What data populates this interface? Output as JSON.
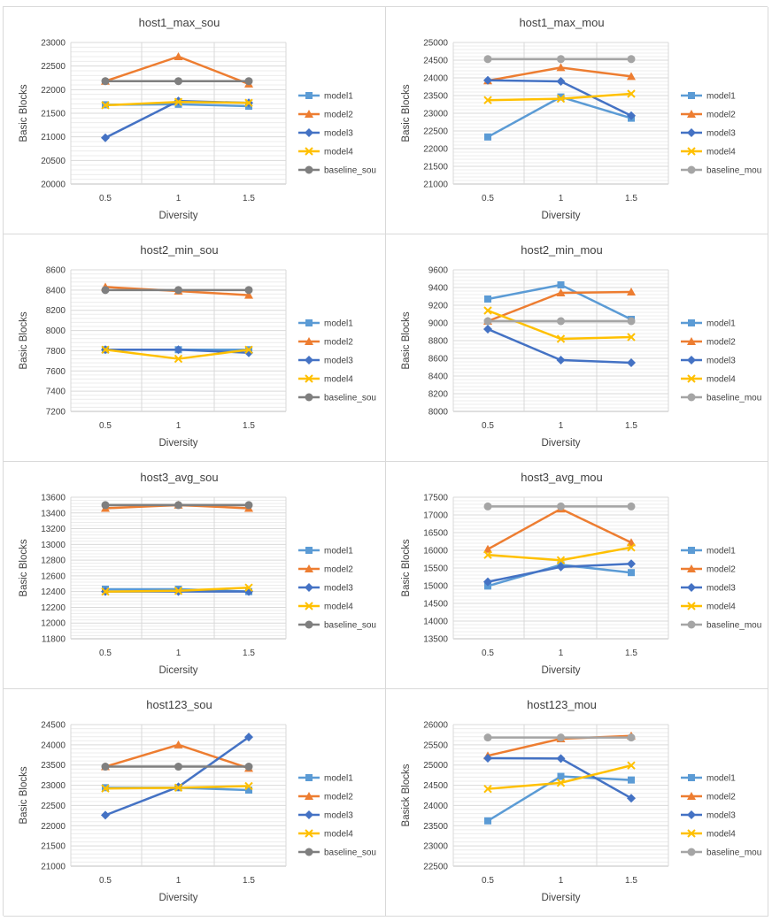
{
  "colors": {
    "model1": "#5b9bd5",
    "model2": "#ed7d31",
    "model3": "#4472c4",
    "model4": "#ffc000",
    "baseline": "#7f7f7f",
    "baseline_mou": "#a5a5a5",
    "grid_minor": "#ececec",
    "grid_vertical": "#d9d9d9",
    "axis": "#bfbfbf",
    "text": "#404040"
  },
  "chart_data": [
    {
      "type": "line",
      "title": "host1_max_sou",
      "xlabel": "Diversity",
      "ylabel": "Basic Blocks",
      "x": [
        "0.5",
        "1",
        "1.5"
      ],
      "ylim": [
        20000,
        23000
      ],
      "yticks": [
        "20000",
        "20500",
        "21000",
        "21500",
        "22000",
        "22500",
        "23000"
      ],
      "legend_position": "right",
      "series": [
        {
          "name": "model1",
          "values": [
            21680,
            21690,
            21650
          ],
          "marker": "square",
          "color": "#5b9bd5"
        },
        {
          "name": "model2",
          "values": [
            22180,
            22700,
            22120
          ],
          "marker": "triangle",
          "color": "#ed7d31"
        },
        {
          "name": "model3",
          "values": [
            20980,
            21760,
            21720
          ],
          "marker": "diamond",
          "color": "#4472c4"
        },
        {
          "name": "model4",
          "values": [
            21670,
            21740,
            21720
          ],
          "marker": "x",
          "color": "#ffc000"
        },
        {
          "name": "baseline_sou",
          "values": [
            22180,
            22180,
            22180
          ],
          "marker": "circle",
          "color": "#7f7f7f"
        }
      ]
    },
    {
      "type": "line",
      "title": "host1_max_mou",
      "xlabel": "Diversity",
      "ylabel": "Basic Blocks",
      "x": [
        "0.5",
        "1",
        "1.5"
      ],
      "ylim": [
        21000,
        25000
      ],
      "yticks": [
        "21000",
        "21500",
        "22000",
        "22500",
        "23000",
        "23500",
        "24000",
        "24500",
        "25000"
      ],
      "legend_position": "right",
      "series": [
        {
          "name": "model1",
          "values": [
            22330,
            23460,
            22860
          ],
          "marker": "square",
          "color": "#5b9bd5"
        },
        {
          "name": "model2",
          "values": [
            23920,
            24290,
            24040
          ],
          "marker": "triangle",
          "color": "#ed7d31"
        },
        {
          "name": "model3",
          "values": [
            23930,
            23900,
            22930
          ],
          "marker": "diamond",
          "color": "#4472c4"
        },
        {
          "name": "model4",
          "values": [
            23370,
            23410,
            23550
          ],
          "marker": "x",
          "color": "#ffc000"
        },
        {
          "name": "baseline_mou",
          "values": [
            24530,
            24530,
            24530
          ],
          "marker": "circle",
          "color": "#a5a5a5"
        }
      ]
    },
    {
      "type": "line",
      "title": "host2_min_sou",
      "xlabel": "Diversity",
      "ylabel": "Basic Blocks",
      "x": [
        "0.5",
        "1",
        "1.5"
      ],
      "ylim": [
        7200,
        8600
      ],
      "yticks": [
        "7200",
        "7400",
        "7600",
        "7800",
        "8000",
        "8200",
        "8400",
        "8600"
      ],
      "legend_position": "right",
      "series": [
        {
          "name": "model1",
          "values": [
            7810,
            7810,
            7810
          ],
          "marker": "square",
          "color": "#5b9bd5"
        },
        {
          "name": "model2",
          "values": [
            8430,
            8390,
            8350
          ],
          "marker": "triangle",
          "color": "#ed7d31"
        },
        {
          "name": "model3",
          "values": [
            7810,
            7810,
            7780
          ],
          "marker": "diamond",
          "color": "#4472c4"
        },
        {
          "name": "model4",
          "values": [
            7810,
            7720,
            7810
          ],
          "marker": "x",
          "color": "#ffc000"
        },
        {
          "name": "baseline_sou",
          "values": [
            8400,
            8400,
            8400
          ],
          "marker": "circle",
          "color": "#7f7f7f"
        }
      ]
    },
    {
      "type": "line",
      "title": "host2_min_mou",
      "xlabel": "Diversity",
      "ylabel": "Basic Blocks",
      "x": [
        "0.5",
        "1",
        "1.5"
      ],
      "ylim": [
        8000,
        9600
      ],
      "yticks": [
        "8000",
        "8200",
        "8400",
        "8600",
        "8800",
        "9000",
        "9200",
        "9400",
        "9600"
      ],
      "legend_position": "right",
      "series": [
        {
          "name": "model1",
          "values": [
            9270,
            9430,
            9040
          ],
          "marker": "square",
          "color": "#5b9bd5"
        },
        {
          "name": "model2",
          "values": [
            9020,
            9340,
            9350
          ],
          "marker": "triangle",
          "color": "#ed7d31"
        },
        {
          "name": "model3",
          "values": [
            8930,
            8580,
            8550
          ],
          "marker": "diamond",
          "color": "#4472c4"
        },
        {
          "name": "model4",
          "values": [
            9140,
            8820,
            8840
          ],
          "marker": "x",
          "color": "#ffc000"
        },
        {
          "name": "baseline_mou",
          "values": [
            9020,
            9020,
            9020
          ],
          "marker": "circle",
          "color": "#a5a5a5"
        }
      ]
    },
    {
      "type": "line",
      "title": "host3_avg_sou",
      "xlabel": "Dicersity",
      "ylabel": "Basic Blocks",
      "x": [
        "0.5",
        "1",
        "1.5"
      ],
      "ylim": [
        11800,
        13600
      ],
      "yticks": [
        "11800",
        "12000",
        "12200",
        "12400",
        "12600",
        "12800",
        "13000",
        "13200",
        "13400",
        "13600"
      ],
      "legend_position": "right",
      "series": [
        {
          "name": "model1",
          "values": [
            12430,
            12430,
            12400
          ],
          "marker": "square",
          "color": "#5b9bd5"
        },
        {
          "name": "model2",
          "values": [
            13460,
            13500,
            13460
          ],
          "marker": "triangle",
          "color": "#ed7d31"
        },
        {
          "name": "model3",
          "values": [
            12400,
            12400,
            12400
          ],
          "marker": "diamond",
          "color": "#4472c4"
        },
        {
          "name": "model4",
          "values": [
            12400,
            12410,
            12450
          ],
          "marker": "x",
          "color": "#ffc000"
        },
        {
          "name": "baseline_sou",
          "values": [
            13500,
            13500,
            13500
          ],
          "marker": "circle",
          "color": "#7f7f7f"
        }
      ]
    },
    {
      "type": "line",
      "title": "host3_avg_mou",
      "xlabel": "Diversity",
      "ylabel": "Basic Blocks",
      "x": [
        "0.5",
        "1",
        "1.5"
      ],
      "ylim": [
        13500,
        17500
      ],
      "yticks": [
        "13500",
        "14000",
        "14500",
        "15000",
        "15500",
        "16000",
        "16500",
        "17000",
        "17500"
      ],
      "legend_position": "right",
      "series": [
        {
          "name": "model1",
          "values": [
            14990,
            15590,
            15370
          ],
          "marker": "square",
          "color": "#5b9bd5"
        },
        {
          "name": "model2",
          "values": [
            16030,
            17170,
            16220
          ],
          "marker": "triangle",
          "color": "#ed7d31"
        },
        {
          "name": "model3",
          "values": [
            15110,
            15530,
            15620
          ],
          "marker": "diamond",
          "color": "#4472c4"
        },
        {
          "name": "model4",
          "values": [
            15870,
            15720,
            16080
          ],
          "marker": "x",
          "color": "#ffc000"
        },
        {
          "name": "baseline_mou",
          "values": [
            17240,
            17240,
            17240
          ],
          "marker": "circle",
          "color": "#a5a5a5"
        }
      ]
    },
    {
      "type": "line",
      "title": "host123_sou",
      "xlabel": "Diversity",
      "ylabel": "Basic Blocks",
      "x": [
        "0.5",
        "1",
        "1.5"
      ],
      "ylim": [
        21000,
        24500
      ],
      "yticks": [
        "21000",
        "21500",
        "22000",
        "22500",
        "23000",
        "23500",
        "24000",
        "24500"
      ],
      "legend_position": "right",
      "series": [
        {
          "name": "model1",
          "values": [
            22940,
            22940,
            22880
          ],
          "marker": "square",
          "color": "#5b9bd5"
        },
        {
          "name": "model2",
          "values": [
            23460,
            24000,
            23420
          ],
          "marker": "triangle",
          "color": "#ed7d31"
        },
        {
          "name": "model3",
          "values": [
            22260,
            22960,
            24190
          ],
          "marker": "diamond",
          "color": "#4472c4"
        },
        {
          "name": "model4",
          "values": [
            22920,
            22940,
            22980
          ],
          "marker": "x",
          "color": "#ffc000"
        },
        {
          "name": "baseline_sou",
          "values": [
            23460,
            23460,
            23460
          ],
          "marker": "circle",
          "color": "#7f7f7f"
        }
      ]
    },
    {
      "type": "line",
      "title": "host123_mou",
      "xlabel": "Diversity",
      "ylabel": "Basick Blocks",
      "x": [
        "0.5",
        "1",
        "1.5"
      ],
      "ylim": [
        22500,
        26000
      ],
      "yticks": [
        "22500",
        "23000",
        "23500",
        "24000",
        "24500",
        "25000",
        "25500",
        "26000"
      ],
      "legend_position": "right",
      "series": [
        {
          "name": "model1",
          "values": [
            23620,
            24720,
            24630
          ],
          "marker": "square",
          "color": "#5b9bd5"
        },
        {
          "name": "model2",
          "values": [
            25230,
            25650,
            25720
          ],
          "marker": "triangle",
          "color": "#ed7d31"
        },
        {
          "name": "model3",
          "values": [
            25170,
            25160,
            24180
          ],
          "marker": "diamond",
          "color": "#4472c4"
        },
        {
          "name": "model4",
          "values": [
            24410,
            24560,
            24990
          ],
          "marker": "x",
          "color": "#ffc000"
        },
        {
          "name": "baseline_mou",
          "values": [
            25680,
            25680,
            25680
          ],
          "marker": "circle",
          "color": "#a5a5a5"
        }
      ]
    }
  ]
}
